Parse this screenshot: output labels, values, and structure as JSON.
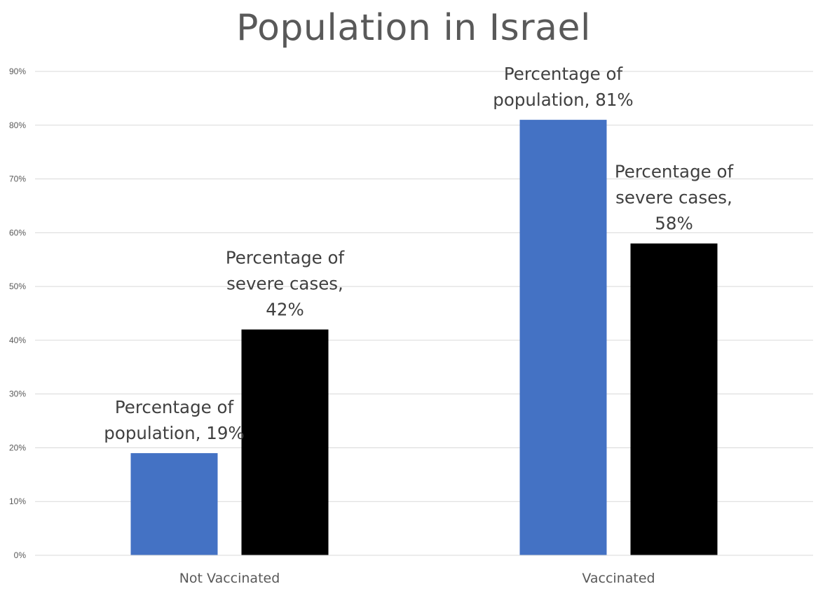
{
  "chart_data": {
    "type": "bar",
    "title": "Population in Israel",
    "xlabel": "",
    "ylabel": "",
    "categories": [
      "Not Vaccinated",
      "Vaccinated"
    ],
    "series": [
      {
        "name": "Percentage of population",
        "values": [
          19,
          81
        ],
        "color": "#4472C4",
        "labels": [
          [
            "Percentage of",
            "population, 19%"
          ],
          [
            "Percentage of",
            "population, 81%"
          ]
        ]
      },
      {
        "name": "Percentage of severe cases",
        "values": [
          42,
          58
        ],
        "color": "#000000",
        "labels": [
          [
            "Percentage of",
            "severe cases,",
            "42%"
          ],
          [
            "Percentage of",
            "severe cases,",
            "58%"
          ]
        ]
      }
    ],
    "ylim": [
      0,
      90
    ],
    "yticks": [
      0,
      10,
      20,
      30,
      40,
      50,
      60,
      70,
      80,
      90
    ],
    "ytick_labels": [
      "0%",
      "10%",
      "20%",
      "30%",
      "40%",
      "50%",
      "60%",
      "70%",
      "80%",
      "90%"
    ],
    "grid": true,
    "legend": "none"
  }
}
